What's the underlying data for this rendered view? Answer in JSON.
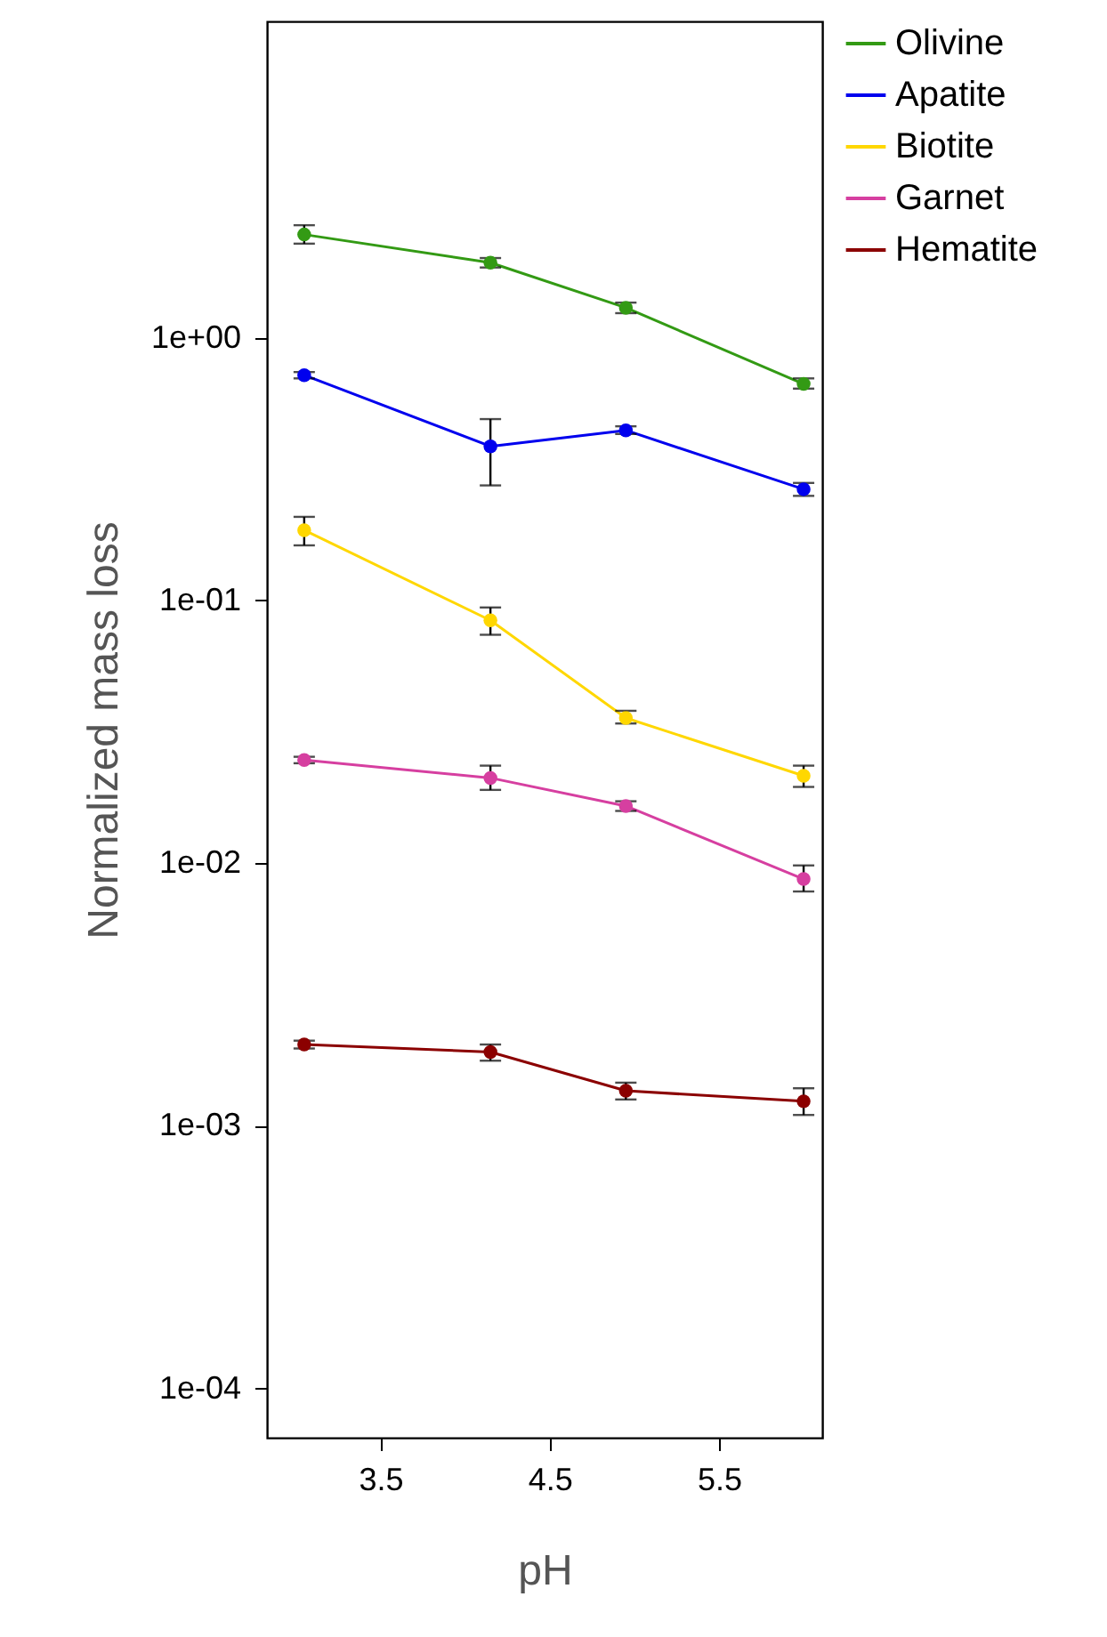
{
  "chart_data": {
    "type": "line",
    "xlabel": "pH",
    "ylabel": "Normalized mass loss",
    "x": [
      3.05,
      4.15,
      4.95,
      6.0
    ],
    "xlim": [
      2.83,
      6.11
    ],
    "xticks": [
      3.5,
      4.5,
      5.5
    ],
    "ylim": [
      6.5e-05,
      16
    ],
    "yticks": [
      {
        "value": 1,
        "label": "1e+00"
      },
      {
        "value": 0.1,
        "label": "1e-01"
      },
      {
        "value": 0.01,
        "label": "1e-02"
      },
      {
        "value": 0.001,
        "label": "1e-03"
      },
      {
        "value": 0.0001,
        "label": "1e-04"
      }
    ],
    "log": "y",
    "grid": false,
    "legend": "top right",
    "marker": "circle",
    "line_style": "solid",
    "series": [
      {
        "name": "Olivine",
        "color": "#339a14",
        "values": [
          2.47,
          1.93,
          1.3,
          0.667
        ],
        "errors": [
          [
            2.28,
            2.68
          ],
          [
            1.85,
            2.01
          ],
          [
            1.24,
            1.36
          ],
          [
            0.64,
            0.7
          ]
        ]
      },
      {
        "name": "Apatite",
        "color": "#0000ee",
        "values": [
          0.72,
          0.386,
          0.444,
          0.265
        ],
        "errors": [
          [
            0.7,
            0.74
          ],
          [
            0.274,
            0.49
          ],
          [
            0.43,
            0.46
          ],
          [
            0.25,
            0.28
          ]
        ]
      },
      {
        "name": "Biotite",
        "color": "#ffd700",
        "values": [
          0.185,
          0.084,
          0.0357,
          0.0215
        ],
        "errors": [
          [
            0.162,
            0.208
          ],
          [
            0.074,
            0.094
          ],
          [
            0.034,
            0.038
          ],
          [
            0.0195,
            0.0235
          ]
        ]
      },
      {
        "name": "Garnet",
        "color": "#d63fa0",
        "values": [
          0.0247,
          0.0211,
          0.0165,
          0.0087
        ],
        "errors": [
          [
            0.024,
            0.0254
          ],
          [
            0.019,
            0.0235
          ],
          [
            0.0158,
            0.0172
          ],
          [
            0.0078,
            0.0098
          ]
        ]
      },
      {
        "name": "Hematite",
        "color": "#8b0000",
        "values": [
          0.00204,
          0.00191,
          0.00136,
          0.00124
        ],
        "errors": [
          [
            0.00197,
            0.00211
          ],
          [
            0.00177,
            0.00204
          ],
          [
            0.00126,
            0.00146
          ],
          [
            0.0011,
            0.00139
          ]
        ]
      }
    ]
  }
}
